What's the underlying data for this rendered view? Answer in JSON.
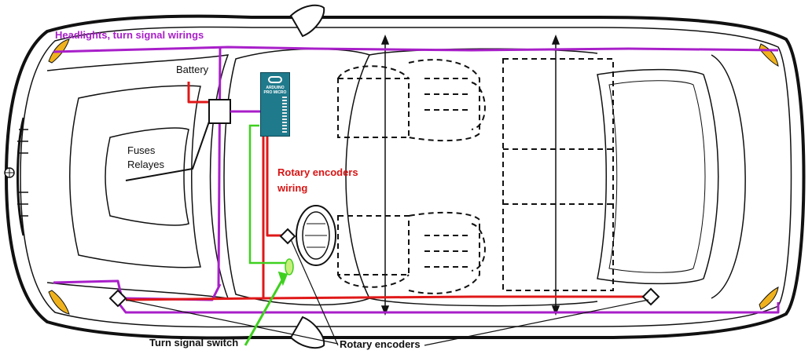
{
  "labels": {
    "headlights": "Headlights, turn signal wirings",
    "battery": "Battery",
    "fuses": "Fuses",
    "relays": "Relayes",
    "rotary_wiring_1": "Rotary encoders",
    "rotary_wiring_2": "wiring",
    "turn_signal_switch": "Turn signal switch",
    "rotary_encoders": "Rotary encoders"
  },
  "board": {
    "name_line1": "ARDUINO",
    "name_line2": "PRO MICRO"
  },
  "colors": {
    "wire_purple": "#a81fc9",
    "wire_red": "#e01818",
    "wire_green": "#3fd01f",
    "lamp_yellow": "#f0b21c",
    "outline": "#111111"
  }
}
